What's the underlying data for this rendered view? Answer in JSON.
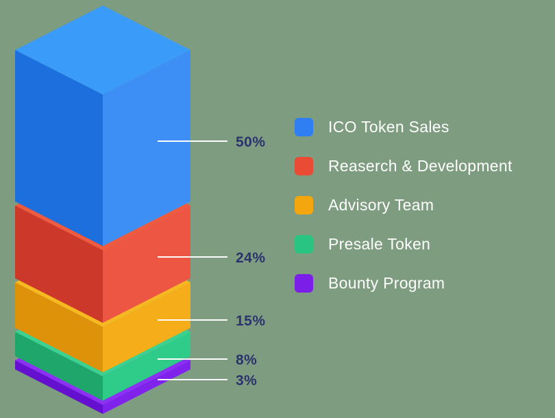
{
  "chart_data": {
    "type": "bar",
    "subtype": "isometric-3d-stacked-column",
    "title": "",
    "categories": [
      "ICO Token Sales",
      "Reaserch & Development",
      "Advisory Team",
      "Presale Token",
      "Bounty Program"
    ],
    "values": [
      50,
      24,
      15,
      8,
      3
    ],
    "value_labels": [
      "50%",
      "24%",
      "15%",
      "8%",
      "3%"
    ],
    "unit": "%",
    "total": 100,
    "legend_position": "right",
    "segment_colors": [
      {
        "name": "blue",
        "base": "#2F7FF2",
        "top": "#3B9BF8",
        "left": "#1E6FDE",
        "right": "#3E8FF5"
      },
      {
        "name": "red",
        "base": "#E94B35",
        "top": "#F05A3F",
        "left": "#CC392A",
        "right": "#EC5642"
      },
      {
        "name": "orange",
        "base": "#F3A60D",
        "top": "#F8B822",
        "left": "#DD920A",
        "right": "#F5AE19"
      },
      {
        "name": "green",
        "base": "#29C382",
        "top": "#3AD191",
        "left": "#1FA76B",
        "right": "#2FCB88"
      },
      {
        "name": "purple",
        "base": "#7B1FE8",
        "top": "#8C30F6",
        "left": "#6510D0",
        "right": "#7F23EC"
      }
    ],
    "callout_line_color": "#FFFFFF",
    "value_label_color": "#2A336E",
    "legend_text_color": "#FFFFFF",
    "background_color": "#7E9D80"
  }
}
